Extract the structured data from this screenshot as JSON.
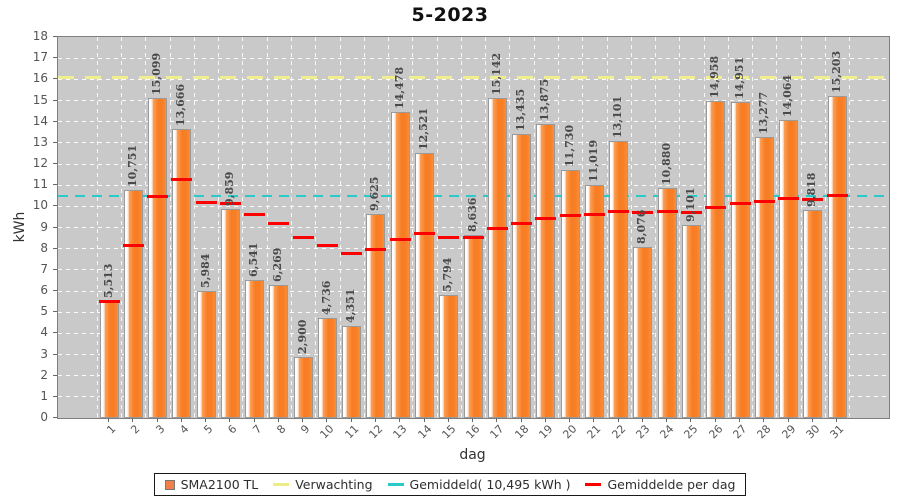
{
  "title": "5-2023",
  "chart_data": {
    "type": "bar",
    "title": "5-2023",
    "xlabel": "dag",
    "ylabel": "kWh",
    "ylim": [
      0,
      18
    ],
    "ytick_step": 1,
    "grid": true,
    "legend_position": "bottom",
    "categories": [
      "1",
      "2",
      "3",
      "4",
      "5",
      "6",
      "7",
      "8",
      "9",
      "10",
      "11",
      "12",
      "13",
      "14",
      "15",
      "16",
      "17",
      "18",
      "19",
      "20",
      "21",
      "22",
      "23",
      "24",
      "25",
      "26",
      "27",
      "28",
      "29",
      "30",
      "31"
    ],
    "y_ticks": [
      "0",
      "1",
      "2",
      "3",
      "4",
      "5",
      "6",
      "7",
      "8",
      "9",
      "10",
      "11",
      "12",
      "13",
      "14",
      "15",
      "16",
      "17",
      "18"
    ],
    "series": [
      {
        "name": "SMA2100 TL",
        "color": "#f8802b",
        "values": [
          5.513,
          10.751,
          15.099,
          13.666,
          5.984,
          9.859,
          6.541,
          6.269,
          2.9,
          4.736,
          4.351,
          9.625,
          14.478,
          12.521,
          5.794,
          8.636,
          15.142,
          13.435,
          13.875,
          11.73,
          11.019,
          13.101,
          8.076,
          10.88,
          9.101,
          14.958,
          14.951,
          13.277,
          14.064,
          9.818,
          15.203
        ],
        "value_labels": [
          "5,513",
          "10,751",
          "15,099",
          "13,666",
          "5,984",
          "9,859",
          "6,541",
          "6,269",
          "2,900",
          "4,736",
          "4,351",
          "9,625",
          "14,478",
          "12,521",
          "5,794",
          "8,636",
          "15,142",
          "13,435",
          "13,875",
          "11,730",
          "11,019",
          "13,101",
          "8,076",
          "10,880",
          "9,101",
          "14,958",
          "14,951",
          "13,277",
          "14,064",
          "9,818",
          "15,203"
        ]
      }
    ],
    "reference_lines": [
      {
        "name": "Verwachting",
        "type": "constant",
        "value": 16.1,
        "color": "#f0ee8e",
        "style": "dashed"
      },
      {
        "name": "Gemiddeld( 10,495 kWh )",
        "type": "constant",
        "value": 10.495,
        "color": "#29cbc9",
        "style": "dashed"
      },
      {
        "name": "Gemiddelde per dag",
        "type": "per_category_segments",
        "color": "#fe0000",
        "values": [
          5.513,
          8.132,
          10.454,
          11.257,
          10.203,
          10.145,
          9.63,
          9.21,
          8.509,
          8.132,
          7.788,
          7.941,
          8.444,
          8.735,
          8.539,
          8.545,
          8.933,
          9.183,
          9.43,
          9.545,
          9.615,
          9.774,
          9.7,
          9.749,
          9.723,
          9.925,
          10.111,
          10.224,
          10.356,
          10.338,
          10.495
        ]
      }
    ]
  },
  "legend": {
    "items": [
      {
        "label": "SMA2100 TL",
        "icon": "square",
        "color": "#f08048"
      },
      {
        "label": "Verwachting",
        "icon": "line",
        "color": "#eeec86"
      },
      {
        "label": "Gemiddeld( 10,495 kWh )",
        "icon": "line",
        "color": "#29cbc9"
      },
      {
        "label": "Gemiddelde per dag",
        "icon": "line",
        "color": "#fe0000"
      }
    ]
  }
}
